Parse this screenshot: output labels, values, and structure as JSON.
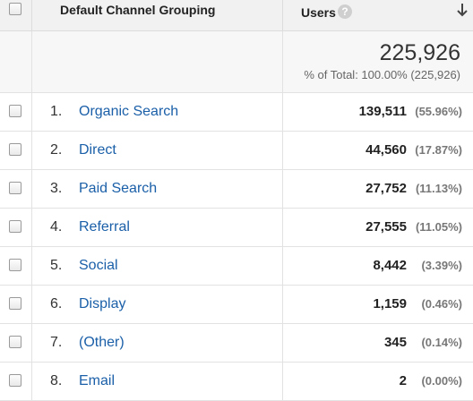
{
  "header": {
    "dimension_label": "Default Channel Grouping",
    "metric_label": "Users",
    "help_icon": "question-mark-icon",
    "sort_icon": "arrow-down-icon"
  },
  "totals": {
    "value": "225,926",
    "pct_text": "% of Total: 100.00% (225,926)"
  },
  "rows": [
    {
      "index": "1.",
      "channel": "Organic Search",
      "users": "139,511",
      "pct": "(55.96%)"
    },
    {
      "index": "2.",
      "channel": "Direct",
      "users": "44,560",
      "pct": "(17.87%)"
    },
    {
      "index": "3.",
      "channel": "Paid Search",
      "users": "27,752",
      "pct": "(11.13%)"
    },
    {
      "index": "4.",
      "channel": "Referral",
      "users": "27,555",
      "pct": "(11.05%)"
    },
    {
      "index": "5.",
      "channel": "Social",
      "users": "8,442",
      "pct": "(3.39%)"
    },
    {
      "index": "6.",
      "channel": "Display",
      "users": "1,159",
      "pct": "(0.46%)"
    },
    {
      "index": "7.",
      "channel": "(Other)",
      "users": "345",
      "pct": "(0.14%)"
    },
    {
      "index": "8.",
      "channel": "Email",
      "users": "2",
      "pct": "(0.00%)"
    }
  ],
  "colors": {
    "link": "#1a5fa8",
    "header_bg": "#f1f1f1",
    "total_bg": "#f7f7f7"
  }
}
